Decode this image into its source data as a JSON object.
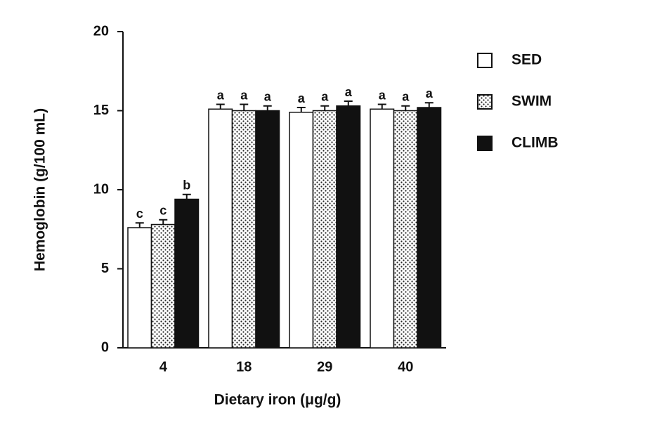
{
  "chart_data": {
    "type": "bar",
    "xlabel": "Dietary iron (μg/g)",
    "ylabel": "Hemoglobin (g/100 mL)",
    "categories": [
      "4",
      "18",
      "29",
      "40"
    ],
    "series": [
      {
        "name": "SED",
        "color": "#ffffff",
        "pattern": "solid",
        "values": [
          7.6,
          15.1,
          14.9,
          15.1
        ],
        "errors": [
          0.3,
          0.3,
          0.3,
          0.3
        ],
        "letters": [
          "c",
          "a",
          "a",
          "a"
        ]
      },
      {
        "name": "SWIM",
        "color": "#ffffff",
        "pattern": "dots",
        "values": [
          7.8,
          15.0,
          15.0,
          15.0
        ],
        "errors": [
          0.3,
          0.4,
          0.3,
          0.3
        ],
        "letters": [
          "c",
          "a",
          "a",
          "a"
        ]
      },
      {
        "name": "CLIMB",
        "color": "#111111",
        "pattern": "solid",
        "values": [
          9.4,
          15.0,
          15.3,
          15.2
        ],
        "errors": [
          0.3,
          0.3,
          0.3,
          0.3
        ],
        "letters": [
          "b",
          "a",
          "a",
          "a"
        ]
      }
    ],
    "ylim": [
      0,
      20
    ],
    "yticks": [
      0,
      5,
      10,
      15,
      20
    ],
    "grid": false,
    "legend": "right"
  }
}
